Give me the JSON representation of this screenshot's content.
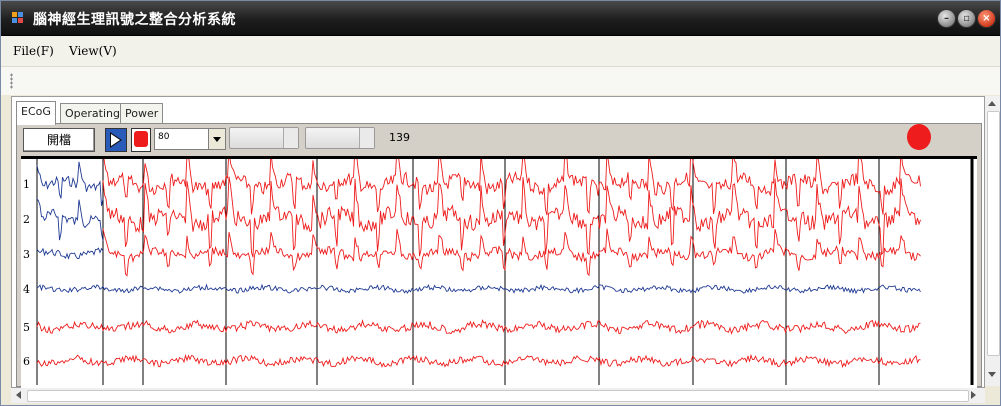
{
  "window": {
    "title": "腦神經生理訊號之整合分析系統",
    "icon": "app-icon",
    "controls": [
      "minimize-icon",
      "restore-icon",
      "close-icon"
    ]
  },
  "menu": {
    "items": [
      {
        "label": "File(F)"
      },
      {
        "label": "View(V)"
      }
    ]
  },
  "tabs": [
    {
      "label": "ECoG",
      "active": true
    },
    {
      "label": "Operating",
      "active": false
    },
    {
      "label": "Power",
      "active": false
    }
  ],
  "toolbar": {
    "open_label": "開檔",
    "play_icon": "play-icon",
    "record_icon": "record-icon",
    "combo_value": "80",
    "count": "139"
  },
  "colors": {
    "signal_red": "#ee1c1c",
    "signal_blue": "#1f3a93",
    "status": "#ee1c1c"
  },
  "channels": [
    "1",
    "2",
    "3",
    "4",
    "5",
    "6"
  ]
}
